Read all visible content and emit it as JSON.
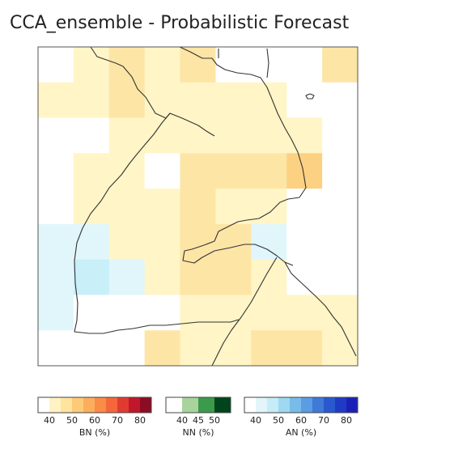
{
  "title": "CCA_ensemble - Probabilistic Forecast",
  "map": {
    "grid": [
      [
        0,
        1,
        2,
        1,
        2,
        0,
        0,
        0,
        2
      ],
      [
        1,
        1,
        2,
        1,
        1,
        1,
        1,
        0,
        0
      ],
      [
        0,
        0,
        1,
        1,
        1,
        1,
        1,
        1,
        0
      ],
      [
        0,
        1,
        1,
        0,
        2,
        2,
        2,
        3,
        0
      ],
      [
        0,
        1,
        1,
        1,
        2,
        1,
        1,
        0,
        0
      ],
      [
        -1,
        -1,
        1,
        1,
        2,
        2,
        -1,
        0,
        0
      ],
      [
        -1,
        -2,
        -1,
        1,
        2,
        2,
        1,
        0,
        0
      ],
      [
        -1,
        0,
        0,
        0,
        1,
        1,
        1,
        1,
        1
      ],
      [
        0,
        0,
        0,
        2,
        1,
        1,
        2,
        2,
        1
      ]
    ],
    "tile_colors": {
      "-2": "#c9eff8",
      "-1": "#e0f6fb",
      "0": "#ffffff",
      "1": "#fff5c6",
      "2": "#fde5a6",
      "3": "#fcd182"
    }
  },
  "colorbars": [
    {
      "label": "BN (%)",
      "ticks": [
        "40",
        "50",
        "60",
        "70",
        "80"
      ],
      "colors": [
        "#ffffff",
        "#fff3c4",
        "#fee49e",
        "#fdcb78",
        "#fcae5c",
        "#fa8c45",
        "#f5673a",
        "#e13b31",
        "#c0172a",
        "#8c0c25"
      ]
    },
    {
      "label": "NN (%)",
      "ticks": [
        "40",
        "45",
        "50"
      ],
      "colors": [
        "#ffffff",
        "#a9d39c",
        "#3b9a4b",
        "#00441b"
      ]
    },
    {
      "label": "AN (%)",
      "ticks": [
        "40",
        "50",
        "60",
        "70",
        "80"
      ],
      "colors": [
        "#ffffff",
        "#e3f5fb",
        "#c6ecf8",
        "#9fd8f1",
        "#78bce9",
        "#5a9de3",
        "#3f7ad8",
        "#2a58cf",
        "#1f3bc5",
        "#1b1fb8"
      ]
    }
  ]
}
